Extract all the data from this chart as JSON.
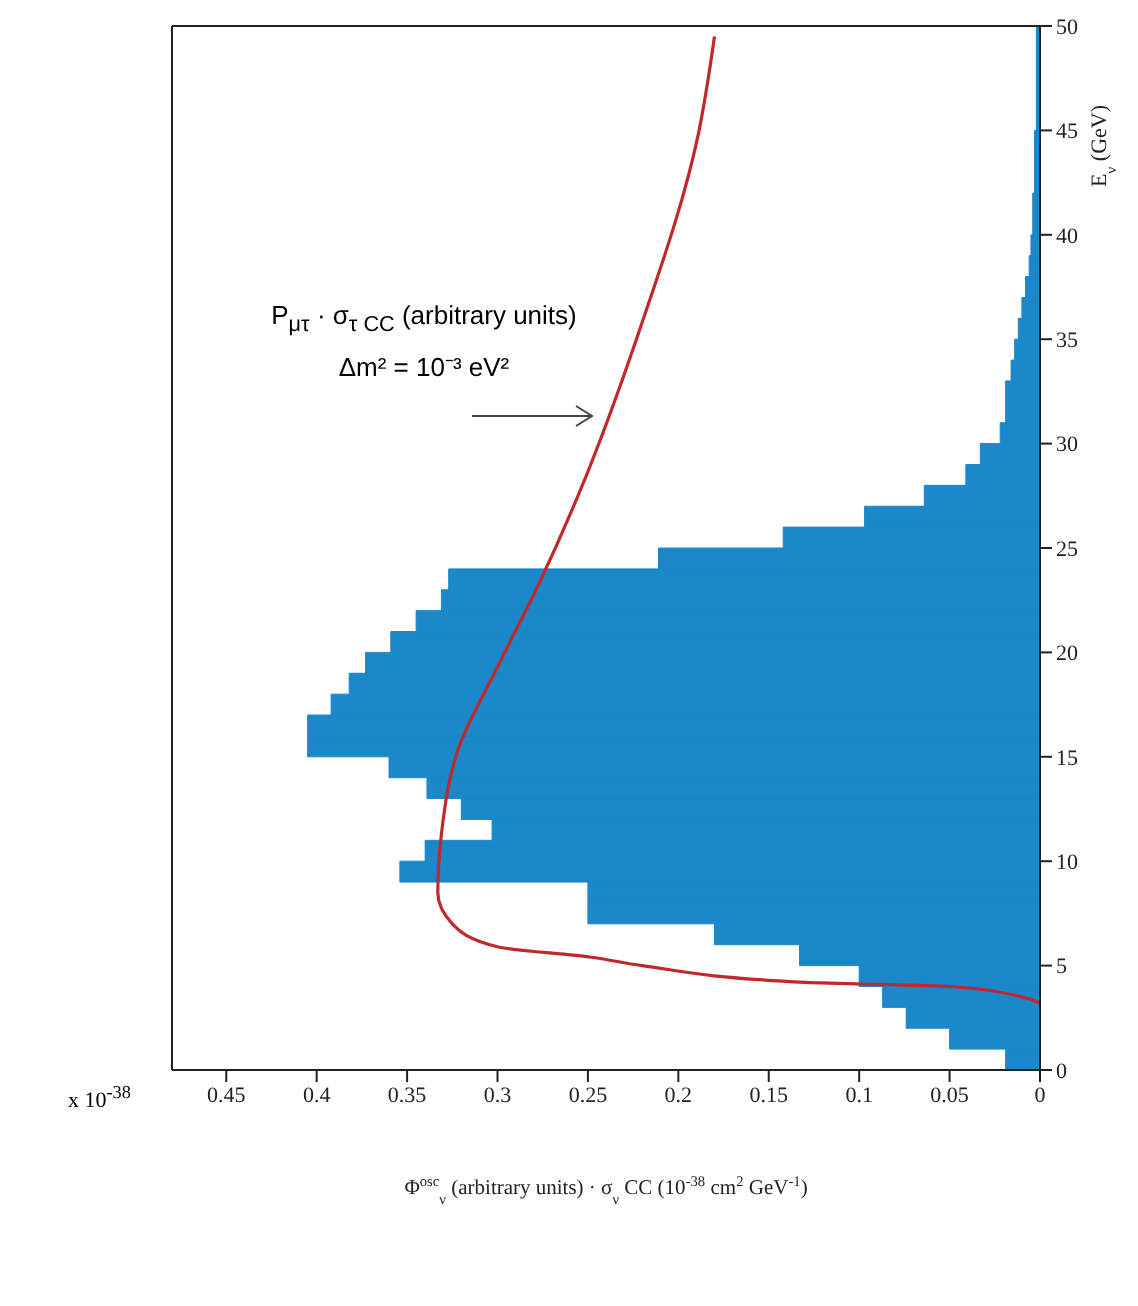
{
  "chart_data": {
    "type": "histogram",
    "orientation": "horizontal",
    "ylabel": "E$_{ν}$ (GeV)",
    "xlabel": "Φ$^{osc}$$_{ν}$ (arbitrary units) · σ$_{ν}$ CC (10$^{-38}$ cm$^{2}$ GeV$^{-1}$)",
    "annotations": [
      "P$_{μτ}$ · σ$_{τ CC}$ (arbitrary units)",
      "Δm² = 10⁻³ eV²",
      "x 10$^{-38}$"
    ],
    "bins": [
      0,
      1,
      2,
      3,
      4,
      5,
      6,
      7,
      8,
      9,
      10,
      11,
      12,
      13,
      14,
      15,
      16,
      17,
      18,
      19,
      20,
      21,
      22,
      23,
      24,
      25,
      26,
      27,
      28,
      29,
      30,
      31,
      32,
      33,
      34,
      35,
      36,
      37,
      38,
      39,
      40,
      41,
      42,
      43,
      44,
      45,
      46,
      47,
      48,
      49,
      50
    ],
    "values": [
      0.019,
      0.05,
      0.074,
      0.087,
      0.1,
      0.133,
      0.18,
      0.25,
      0.25,
      0.354,
      0.34,
      0.303,
      0.32,
      0.339,
      0.36,
      0.405,
      0.405,
      0.392,
      0.382,
      0.373,
      0.359,
      0.345,
      0.331,
      0.327,
      0.211,
      0.142,
      0.097,
      0.064,
      0.041,
      0.033,
      0.022,
      0.019,
      0.019,
      0.016,
      0.014,
      0.012,
      0.01,
      0.008,
      0.006,
      0.005,
      0.004,
      0.004,
      0.003,
      0.003,
      0.003,
      0.002,
      0.002,
      0.002,
      0.002,
      0.002
    ],
    "color": "#1a88c9",
    "series": [
      {
        "type": "line",
        "color": "#c0282d",
        "x": [
          3.2,
          3.5,
          4,
          4.2,
          5,
          5.4,
          5.9,
          7,
          8.5,
          11.3,
          15.3,
          19.3,
          23.3,
          27.6,
          35.3,
          44.8,
          49.5
        ],
        "values": [
          0,
          0.01,
          0.05,
          0.13,
          0.22,
          0.248,
          0.3,
          0.325,
          0.333,
          0.331,
          0.322,
          0.3,
          0.277,
          0.255,
          0.222,
          0.189,
          0.18
        ]
      }
    ],
    "ylim": [
      0,
      50
    ],
    "yticks": [
      0,
      5,
      10,
      15,
      20,
      25,
      30,
      35,
      40,
      45,
      50
    ],
    "xlim": [
      0.48,
      0
    ],
    "xticks": [
      0,
      0.05,
      0.1,
      0.15,
      0.2,
      0.25,
      0.3,
      0.35,
      0.4,
      0.45
    ]
  }
}
